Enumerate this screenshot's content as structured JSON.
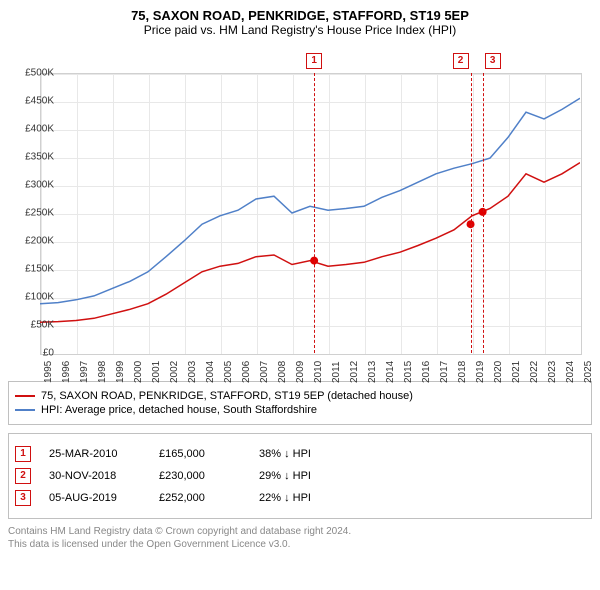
{
  "title": "75, SAXON ROAD, PENKRIDGE, STAFFORD, ST19 5EP",
  "subtitle": "Price paid vs. HM Land Registry's House Price Index (HPI)",
  "chart": {
    "type": "line",
    "xlim": [
      1995,
      2025
    ],
    "ylim": [
      0,
      500000
    ],
    "ytick_step": 50000,
    "yticks": [
      "£0",
      "£50K",
      "£100K",
      "£150K",
      "£200K",
      "£250K",
      "£300K",
      "£350K",
      "£400K",
      "£450K",
      "£500K"
    ],
    "xticks": [
      "1995",
      "1996",
      "1997",
      "1998",
      "1999",
      "2000",
      "2001",
      "2002",
      "2003",
      "2004",
      "2005",
      "2006",
      "2007",
      "2008",
      "2009",
      "2010",
      "2011",
      "2012",
      "2013",
      "2014",
      "2015",
      "2016",
      "2017",
      "2018",
      "2019",
      "2020",
      "2021",
      "2022",
      "2023",
      "2024",
      "2025"
    ],
    "grid_color": "#e8e8e8",
    "background_color": "#ffffff",
    "series": [
      {
        "name": "price_paid",
        "label": "75, SAXON ROAD, PENKRIDGE, STAFFORD, ST19 5EP (detached house)",
        "color": "#d01010",
        "line_width": 1.5,
        "data": [
          [
            1995,
            55000
          ],
          [
            1996,
            56000
          ],
          [
            1997,
            58000
          ],
          [
            1998,
            62000
          ],
          [
            1999,
            70000
          ],
          [
            2000,
            78000
          ],
          [
            2001,
            88000
          ],
          [
            2002,
            105000
          ],
          [
            2003,
            125000
          ],
          [
            2004,
            145000
          ],
          [
            2005,
            155000
          ],
          [
            2006,
            160000
          ],
          [
            2007,
            172000
          ],
          [
            2008,
            175000
          ],
          [
            2009,
            158000
          ],
          [
            2010,
            165000
          ],
          [
            2011,
            155000
          ],
          [
            2012,
            158000
          ],
          [
            2013,
            162000
          ],
          [
            2014,
            172000
          ],
          [
            2015,
            180000
          ],
          [
            2016,
            192000
          ],
          [
            2017,
            205000
          ],
          [
            2018,
            220000
          ],
          [
            2019,
            245000
          ],
          [
            2020,
            258000
          ],
          [
            2021,
            280000
          ],
          [
            2022,
            320000
          ],
          [
            2023,
            305000
          ],
          [
            2024,
            320000
          ],
          [
            2025,
            340000
          ]
        ]
      },
      {
        "name": "hpi",
        "label": "HPI: Average price, detached house, South Staffordshire",
        "color": "#5080c8",
        "line_width": 1.5,
        "data": [
          [
            1995,
            88000
          ],
          [
            1996,
            90000
          ],
          [
            1997,
            95000
          ],
          [
            1998,
            102000
          ],
          [
            1999,
            115000
          ],
          [
            2000,
            128000
          ],
          [
            2001,
            145000
          ],
          [
            2002,
            172000
          ],
          [
            2003,
            200000
          ],
          [
            2004,
            230000
          ],
          [
            2005,
            245000
          ],
          [
            2006,
            255000
          ],
          [
            2007,
            275000
          ],
          [
            2008,
            280000
          ],
          [
            2009,
            250000
          ],
          [
            2010,
            262000
          ],
          [
            2011,
            255000
          ],
          [
            2012,
            258000
          ],
          [
            2013,
            262000
          ],
          [
            2014,
            278000
          ],
          [
            2015,
            290000
          ],
          [
            2016,
            305000
          ],
          [
            2017,
            320000
          ],
          [
            2018,
            330000
          ],
          [
            2019,
            338000
          ],
          [
            2020,
            348000
          ],
          [
            2021,
            385000
          ],
          [
            2022,
            430000
          ],
          [
            2023,
            418000
          ],
          [
            2024,
            435000
          ],
          [
            2025,
            455000
          ]
        ]
      }
    ],
    "event_markers": [
      {
        "num": "1",
        "x": 2010.23,
        "date": "25-MAR-2010",
        "price": "£165,000",
        "diff": "38% ↓ HPI",
        "y": 165000
      },
      {
        "num": "2",
        "x": 2018.92,
        "date": "30-NOV-2018",
        "price": "£230,000",
        "diff": "29% ↓ HPI",
        "y": 230000
      },
      {
        "num": "3",
        "x": 2019.59,
        "date": "05-AUG-2019",
        "price": "£252,000",
        "diff": "22% ↓ HPI",
        "y": 252000
      }
    ]
  },
  "footer": {
    "line1": "Contains HM Land Registry data © Crown copyright and database right 2024.",
    "line2": "This data is licensed under the Open Government Licence v3.0."
  }
}
